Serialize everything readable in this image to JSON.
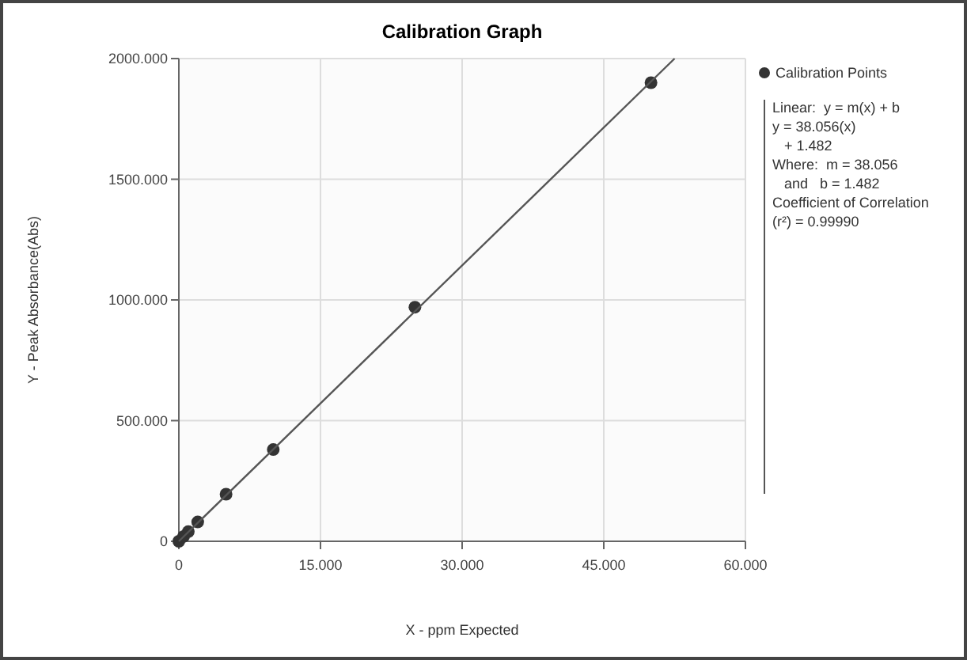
{
  "chart_data": {
    "type": "scatter",
    "title": "Calibration Graph",
    "xlabel": "X - ppm Expected",
    "ylabel": "Y - Peak Absorbance(Abs)",
    "xlim": [
      0,
      60
    ],
    "ylim": [
      0,
      2000
    ],
    "xticks": [
      0,
      {
        "value": 15,
        "label": "15.000"
      },
      {
        "value": 30,
        "label": "30.000"
      },
      {
        "value": 45,
        "label": "45.000"
      },
      {
        "value": 60,
        "label": "60.000"
      }
    ],
    "yticks": [
      0,
      {
        "value": 500,
        "label": "500.000"
      },
      {
        "value": 1000,
        "label": "1000.000"
      },
      {
        "value": 1500,
        "label": "1500.000"
      },
      {
        "value": 2000,
        "label": "2000.000"
      }
    ],
    "grid": true,
    "legend": "top right",
    "marker": "circle",
    "series": [
      {
        "name": "Calibration Points",
        "color": "#333333",
        "x": [
          0,
          0.5,
          1,
          2,
          5,
          10,
          25,
          50
        ],
        "values": [
          0,
          20,
          40,
          80,
          195,
          380,
          970,
          1900
        ]
      },
      {
        "type": "line",
        "color": "#555555",
        "line_style": "solid",
        "marker": "none",
        "x": [
          0,
          52.5
        ],
        "values": [
          0,
          2000
        ]
      }
    ],
    "annotations": [
      "Linear:  y = m(x) + b",
      "y = 38.056(x)",
      "   + 1.482",
      "Where:  m = 38.056",
      "   and   b = 1.482",
      "Coefficient of Correlation",
      "(r²) = 0.99990"
    ]
  }
}
